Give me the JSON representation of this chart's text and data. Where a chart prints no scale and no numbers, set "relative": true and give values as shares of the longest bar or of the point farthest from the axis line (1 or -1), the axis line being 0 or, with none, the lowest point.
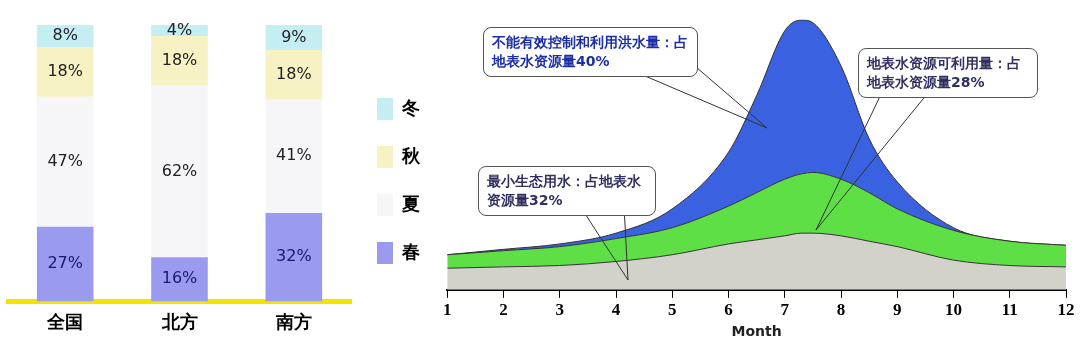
{
  "chart_data": [
    {
      "type": "bar",
      "stacked": true,
      "categories": [
        "全国",
        "北方",
        "南方"
      ],
      "series": [
        {
          "name": "春",
          "color": "#9a9aee",
          "values": [
            27,
            16,
            32
          ],
          "value_labels": [
            "27%",
            "16%",
            "32%"
          ]
        },
        {
          "name": "夏",
          "color": "#f6f6f8",
          "values": [
            47,
            62,
            41
          ],
          "value_labels": [
            "47%",
            "62%",
            "41%"
          ]
        },
        {
          "name": "秋",
          "color": "#f6f2c4",
          "values": [
            18,
            18,
            18
          ],
          "value_labels": [
            "18%",
            "18%",
            "18%"
          ]
        },
        {
          "name": "冬",
          "color": "#c4eef2",
          "values": [
            8,
            4,
            9
          ],
          "value_labels": [
            "8%",
            "4%",
            "9%"
          ]
        }
      ],
      "legend": "right",
      "tick_labels": "x",
      "grid": false
    },
    {
      "type": "area",
      "stacked": true,
      "relative": true,
      "xlabel": "Month",
      "x": [
        1,
        2,
        3,
        4,
        5,
        6,
        6.5,
        7,
        7.3,
        7.5,
        8,
        8.5,
        9,
        10,
        11,
        12
      ],
      "xlim": [
        1,
        12
      ],
      "xticks": [
        1,
        2,
        3,
        4,
        5,
        6,
        7,
        8,
        9,
        10,
        11,
        12
      ],
      "series": [
        {
          "color": "#d2d2ca",
          "values": [
            0.08,
            0.085,
            0.09,
            0.105,
            0.13,
            0.17,
            0.185,
            0.2,
            0.21,
            0.21,
            0.2,
            0.18,
            0.16,
            0.11,
            0.09,
            0.085
          ]
        },
        {
          "color": "#5ddf45",
          "values": [
            0.05,
            0.06,
            0.07,
            0.085,
            0.1,
            0.14,
            0.175,
            0.21,
            0.22,
            0.225,
            0.21,
            0.18,
            0.14,
            0.11,
            0.09,
            0.08
          ]
        },
        {
          "color": "#3a62e0",
          "values": [
            0,
            0.005,
            0.01,
            0.02,
            0.07,
            0.2,
            0.36,
            0.55,
            0.57,
            0.555,
            0.42,
            0.2,
            0.1,
            0.01,
            0,
            0
          ]
        }
      ],
      "annotations": [
        "不能有效控制和利用洪水量：占地表水资源量40%",
        "地表水资源可利用量：占地表水资源量28%",
        "最小生态用水：占地表水资源量32%"
      ],
      "legend": false,
      "grid": false,
      "marker": "none"
    }
  ]
}
